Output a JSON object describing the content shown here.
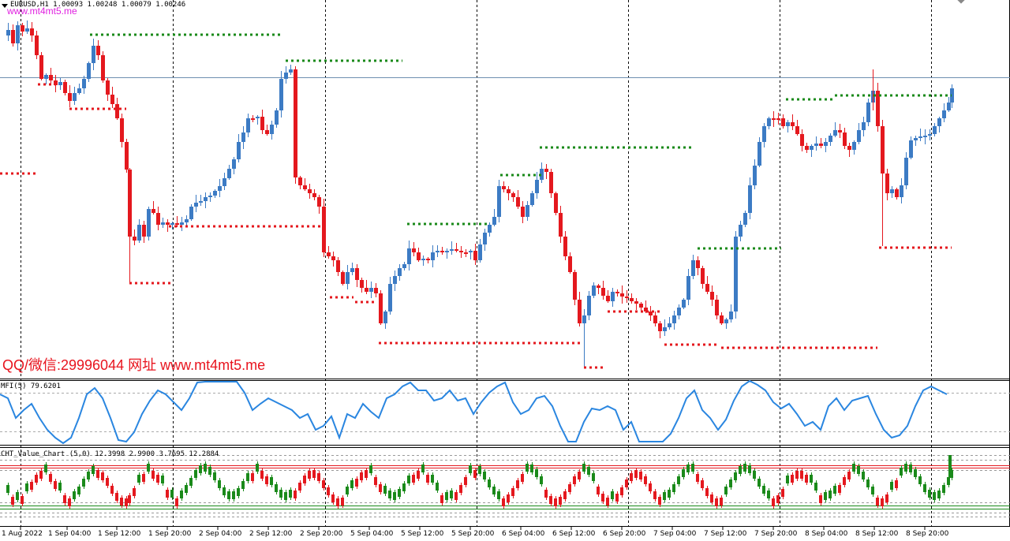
{
  "main": {
    "title": "EURUSD,H1  1.00093 1.00248 1.00079 1.00246",
    "watermark_top": "www.mt4mt5.me",
    "watermark_bottom": "QQ/微信:29996044 网址 www.mt4mt5.me"
  },
  "mfi_panel": {
    "label": "MFI(5) 79.6201"
  },
  "cht_panel": {
    "label": "CHT_Value_Chart (5,0) 12.3998 2.9900 3.7695 12.2884"
  },
  "time_axis": {
    "ticks": [
      "1 Aug 2022",
      "1 Sep 04:00",
      "1 Sep 12:00",
      "1 Sep 20:00",
      "2 Sep 04:00",
      "2 Sep 12:00",
      "2 Sep 20:00",
      "5 Sep 04:00",
      "5 Sep 12:00",
      "5 Sep 20:00",
      "6 Sep 04:00",
      "6 Sep 12:00",
      "6 Sep 20:00",
      "7 Sep 04:00",
      "7 Sep 12:00",
      "7 Sep 20:00",
      "8 Sep 04:00",
      "8 Sep 12:00",
      "8 Sep 20:00"
    ]
  },
  "chart_data": {
    "type": "candlestick",
    "symbol": "EURUSD",
    "timeframe": "H1",
    "ohlc_last": {
      "open": 1.00093,
      "high": 1.00248,
      "low": 1.00079,
      "close": 1.00246
    },
    "colors": {
      "bull": "#3c7bc4",
      "bear": "#e4181e",
      "support": "#e4181e",
      "resistance": "#1a8a1a",
      "mfi": "#2a86e0"
    },
    "mfi_last": 79.6201,
    "cht_values": [
      12.3998,
      2.99,
      3.7695,
      12.2884
    ]
  }
}
